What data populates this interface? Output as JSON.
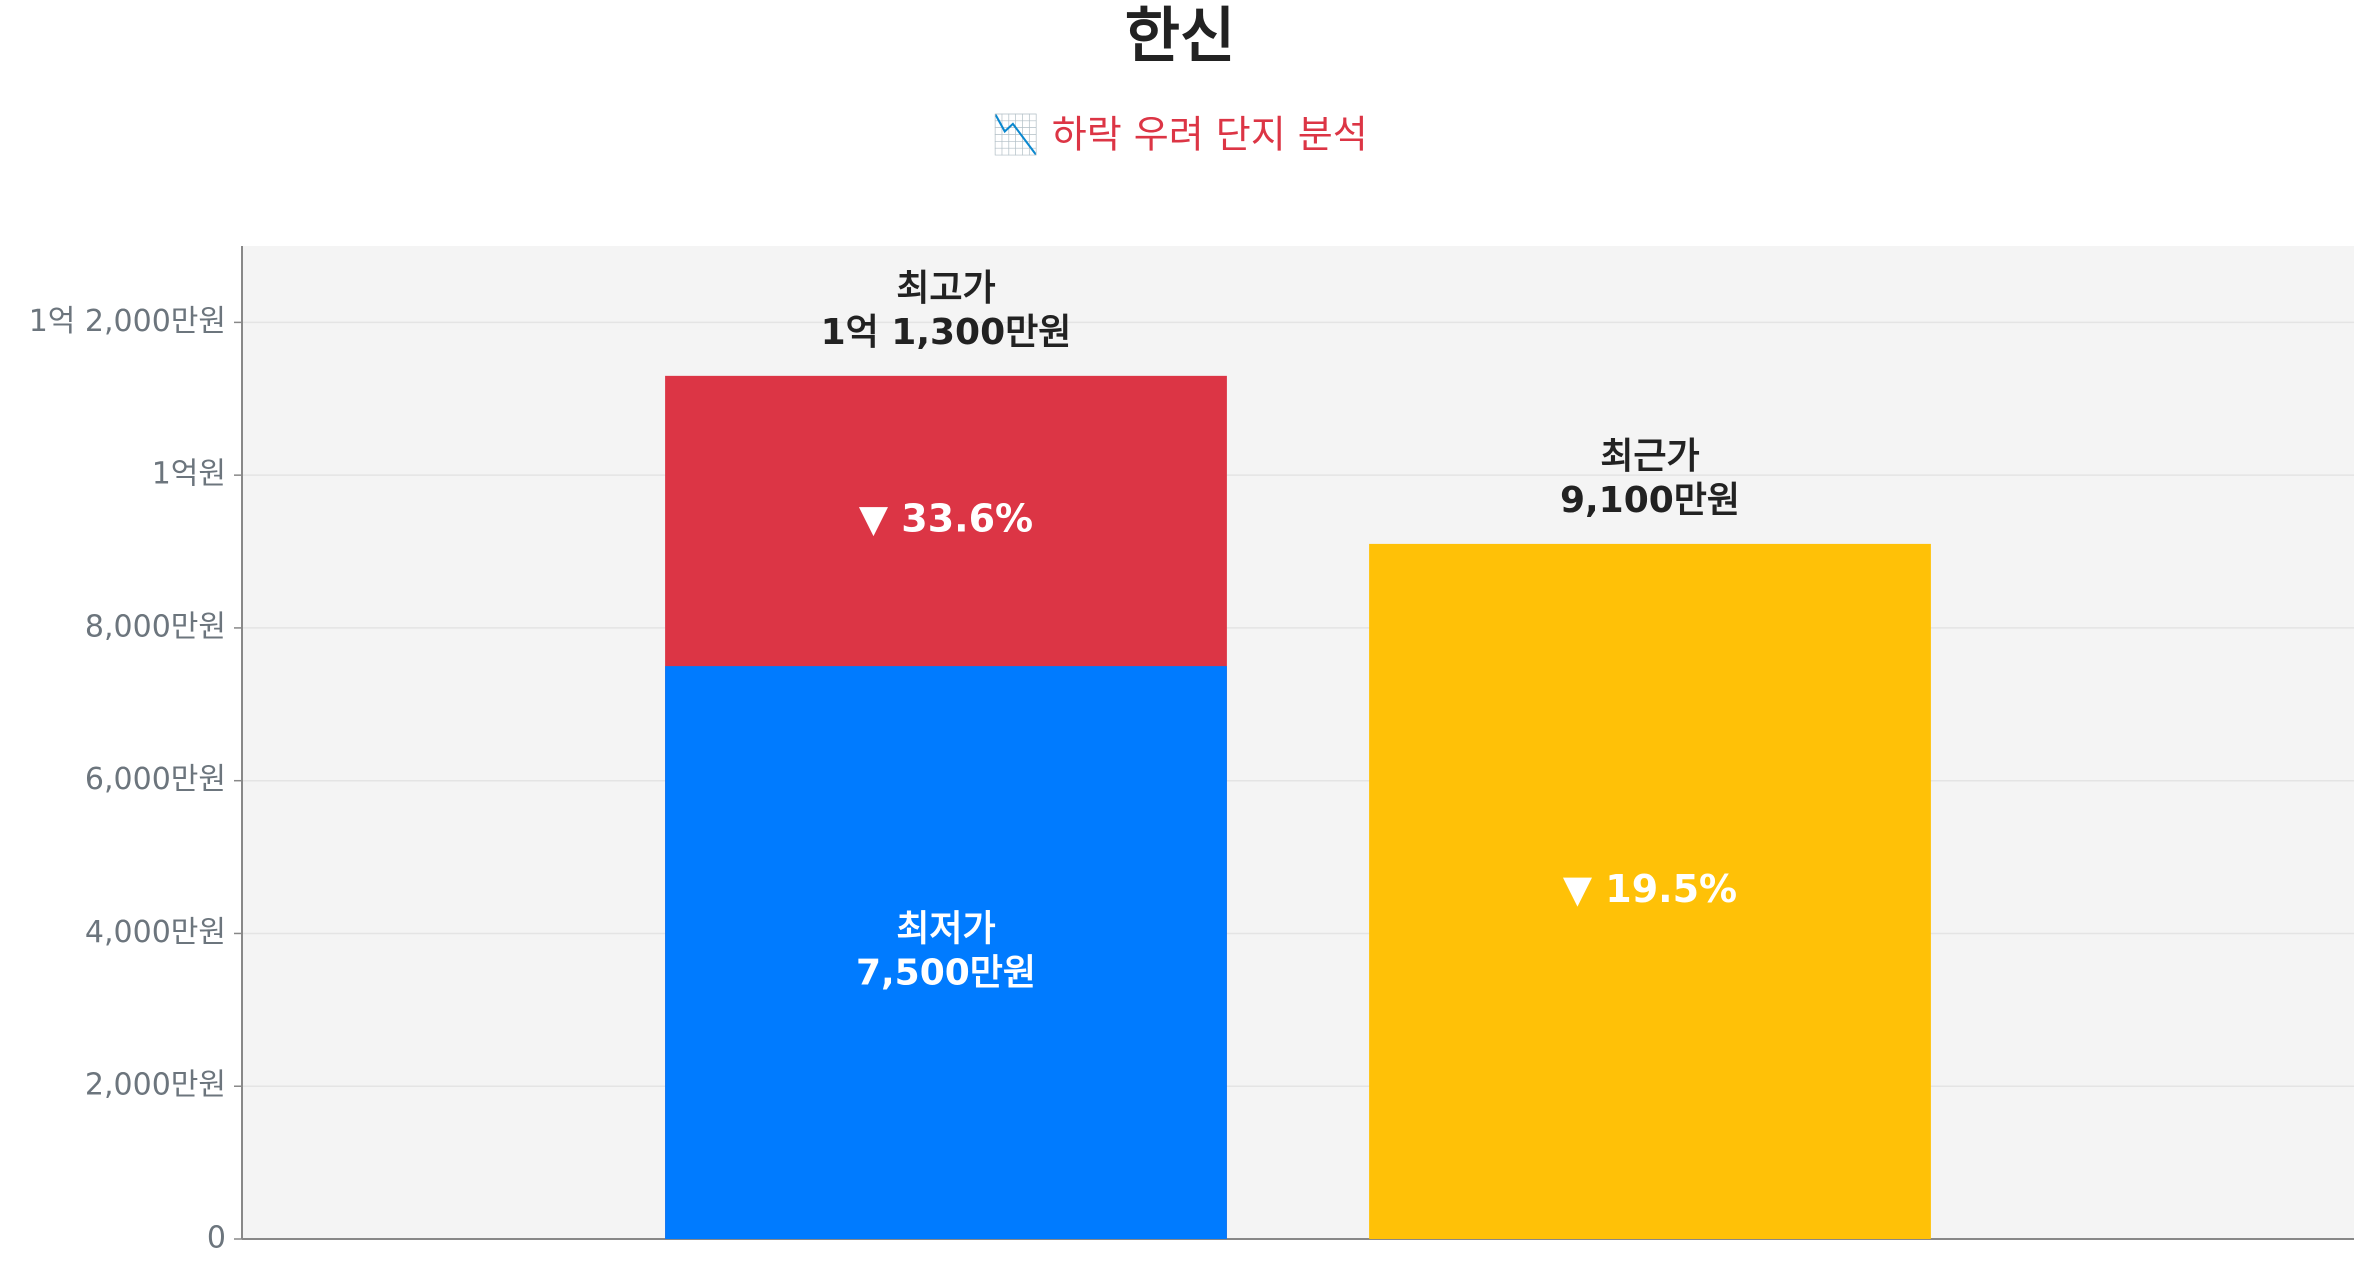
{
  "chart_data": {
    "type": "bar",
    "title": "한신",
    "subtitle": "📉 하락 우려 단지 분석",
    "categories": [
      null,
      null
    ],
    "series": [
      {
        "name": "최고가",
        "color": "#dc3545",
        "values": [
          11300,
          null
        ],
        "value_labels": [
          "1억 1,300만원",
          null
        ]
      },
      {
        "name": "최저가",
        "color": "#007bff",
        "values": [
          7500,
          null
        ],
        "value_labels": [
          "7,500만원",
          null
        ]
      },
      {
        "name": "최근가",
        "color": "#ffc107",
        "values": [
          null,
          9100
        ],
        "value_labels": [
          null,
          "9,100만원"
        ]
      }
    ],
    "annotations": [
      "▼ 33.6%",
      "▼ 19.5%"
    ],
    "ylim": [
      0,
      13000
    ],
    "yticks": [
      0,
      {
        "value": 2000,
        "label": "2,000만원"
      },
      {
        "value": 4000,
        "label": "4,000만원"
      },
      {
        "value": 6000,
        "label": "6,000만원"
      },
      {
        "value": 8000,
        "label": "8,000만원"
      },
      {
        "value": 10000,
        "label": "1억원"
      },
      {
        "value": 12000,
        "label": "1억 2,000만원"
      }
    ],
    "grid": true
  }
}
